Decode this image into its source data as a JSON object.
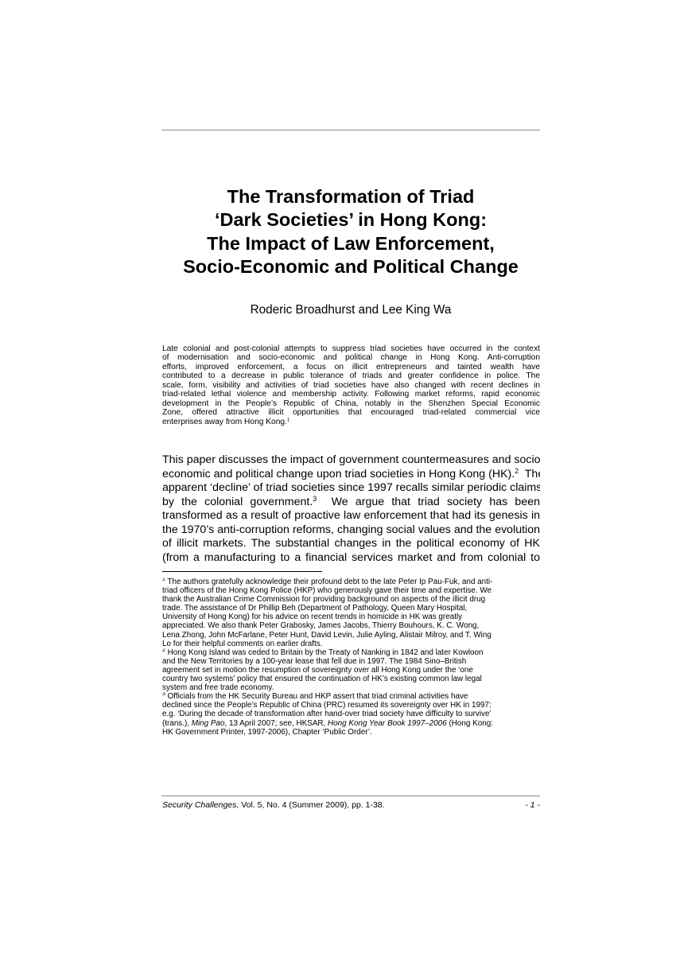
{
  "title": {
    "lines": [
      "The Transformation of Triad",
      "‘Dark Societies’ in Hong Kong:",
      "The Impact of Law Enforcement,",
      "Socio-Economic and Political Change"
    ]
  },
  "authors": "Roderic Broadhurst and Lee King Wa",
  "abstract": {
    "lines": [
      "Late colonial and post-colonial attempts to suppress triad societies have occurred in the context",
      "of modernisation and socio-economic and political change in Hong Kong.  Anti-corruption",
      "efforts, improved enforcement, a focus on illicit entrepreneurs and tainted wealth have",
      "contributed to a decrease in public tolerance of triads and greater confidence in police.  The",
      "scale, form, visibility and activities of triad societies have also changed with recent declines in",
      "triad-related lethal violence and membership activity.  Following market reforms, rapid economic",
      "development in the People’s Republic of China, notably in the Shenzhen Special Economic",
      "Zone, offered attractive illicit opportunities that encouraged triad-related commercial vice"
    ],
    "last_line": "enterprises away from Hong Kong.",
    "last_line_sup": "1"
  },
  "body": {
    "line1": "This paper discusses the impact of government countermeasures and socio-",
    "line2": "economic and political change upon triad societies in Hong Kong (HK).",
    "line2_sup": "2",
    "line2_tail": "  The",
    "line3": "apparent ‘decline’ of triad societies since 1997 recalls similar periodic claims",
    "line4": "by the colonial government.",
    "line4_sup": "3",
    "line4_tail": "  We argue that triad society has been",
    "line5": "transformed as a result of proactive law enforcement that had its genesis in",
    "line6": "the 1970’s anti-corruption reforms, changing social values and the evolution",
    "line7": "of illicit markets.  The substantial changes in the political economy of HK",
    "line8": "(from a manufacturing to a financial services market and from colonial to"
  },
  "footnotes": {
    "fn1_mark": "1",
    "fn1_lines": [
      " The authors gratefully acknowledge their profound debt to the late Peter Ip Pau-Fuk, and anti-",
      "triad officers of the Hong Kong Police (HKP) who generously gave their time and expertise.  We",
      "thank the Australian Crime Commission for providing background on aspects of the illicit drug",
      "trade. The assistance of Dr Phillip Beh (Department of Pathology, Queen Mary Hospital,",
      "University of Hong Kong) for his advice on recent trends in homicide in HK was greatly",
      "appreciated.  We also thank Peter Grabosky, James Jacobs, Thierry Bouhours, K. C. Wong,",
      "Lena Zhong, John McFarlane, Peter Hunt, David Levin, Julie Ayling, Alistair Milroy, and T. Wing",
      "Lo for their helpful comments on earlier drafts."
    ],
    "fn2_mark": "2",
    "fn2_lines": [
      " Hong Kong Island was ceded to Britain by the Treaty of Nanking in 1842 and later Kowloon",
      "and the New Territories by a 100-year lease that fell due in 1997.  The 1984 Sino–British",
      "agreement set in motion the resumption of sovereignty over all Hong Kong under the ‘one",
      "country two systems’ policy that ensured the continuation of HK’s existing common law legal",
      "system and free trade economy."
    ],
    "fn3_mark": "3",
    "fn3_lines": [
      " Officials from the HK Security Bureau and HKP assert that triad criminal activities have",
      "declined since the People’s Republic of China (PRC) resumed its sovereignty over HK in 1997:",
      "e.g. ‘During the decade of transformation after hand-over triad society have difficulty to survive’"
    ],
    "fn3_l4_a": "(trans.), ",
    "fn3_l4_ming": "Ming Pao",
    "fn3_l4_b": ", 13 April 2007; see, HKSAR, ",
    "fn3_l4_book": "Hong Kong Year Book 1997–2006",
    "fn3_l4_c": " (Hong Kong:",
    "fn3_l5": "HK Government Printer, 1997-2006), Chapter ‘Public Order’."
  },
  "footer": {
    "journal": "Security Challenges",
    "citation": ", Vol. 5, No. 4 (Summer 2009), pp. 1-38.",
    "page": "- 1 -"
  }
}
